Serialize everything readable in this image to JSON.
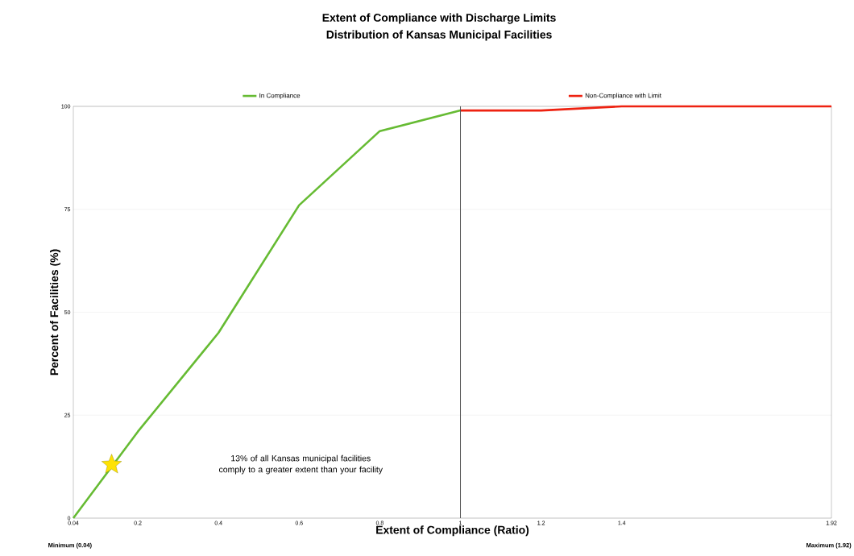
{
  "chart_data": {
    "type": "line",
    "title": "Extent of Compliance with Discharge Limits",
    "subtitle": "Distribution of Kansas Municipal Facilities",
    "xlabel": "Extent of Compliance (Ratio)",
    "ylabel": "Percent of Facilities (%)",
    "x": [
      0.04,
      0.2,
      0.4,
      0.6,
      0.8,
      1,
      1.2,
      1.4,
      1.92
    ],
    "series": [
      {
        "name": "In Compliance",
        "color": "#66bb33",
        "values": [
          0,
          21,
          45,
          76,
          94,
          99,
          null,
          null,
          null
        ]
      },
      {
        "name": "Non-Compliance with Limit",
        "color": "#ee2211",
        "values": [
          null,
          null,
          null,
          null,
          null,
          99,
          99,
          100,
          100
        ]
      },
      {
        "type": "scatter",
        "color": "#fee203",
        "marker": "star",
        "x": [
          0.135
        ],
        "values": [
          13
        ]
      }
    ],
    "xlim": [
      0.04,
      1.92
    ],
    "xticks": [
      0.04,
      0.2,
      0.4,
      0.6,
      0.8,
      1,
      1.2,
      1.4,
      1.92
    ],
    "ylim": [
      0,
      100
    ],
    "yticks": [
      0,
      25,
      50,
      75,
      100
    ],
    "grid": "y",
    "legend": "top",
    "marker": "none",
    "line_style": "solid",
    "ref_lines": [
      {
        "axis": "x",
        "value": 1,
        "color": "#555555"
      }
    ],
    "annotations": [
      "13% of all Kansas municipal facilities comply to a greater extent than your facility",
      "Minimum (0.04)",
      "Maximum (1.92)"
    ]
  }
}
